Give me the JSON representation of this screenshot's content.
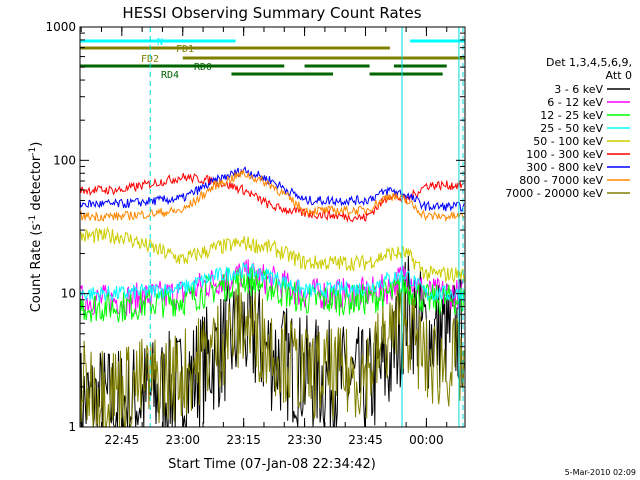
{
  "chart_data": {
    "type": "line",
    "title": "HESSI Observing Summary Count Rates",
    "ylabel": "Count Rate (s",
    "ylabel_sup1": "-1",
    "ylabel_mid": " detector",
    "ylabel_sup2": "-1",
    "ylabel_end": ")",
    "xlabel": "Start Time (07-Jan-08 22:34:42)",
    "y_scale": "log",
    "ylim": [
      1,
      1000
    ],
    "xlim": [
      "22:34:42",
      "00:09:30"
    ],
    "x_tick_labels": [
      "22:45",
      "23:00",
      "23:15",
      "23:30",
      "23:45",
      "00:00"
    ],
    "y_tick_labels": [
      "1",
      "10",
      "100",
      "1000"
    ],
    "legend_title": "Det 1,3,4,5,6,9,",
    "legend_subtitle": "Att 0",
    "legend_position": "right",
    "footer": "5-Mar-2010 02:09",
    "series": [
      {
        "name": "3 - 6 keV",
        "color": "#000000",
        "x": [
          "22:45",
          "23:00",
          "23:08",
          "23:15",
          "23:22",
          "23:30",
          "23:45",
          "23:51",
          "23:55",
          "00:00"
        ],
        "y": [
          1.5,
          2,
          3.5,
          5.5,
          3.5,
          2.5,
          2,
          3,
          8,
          5
        ]
      },
      {
        "name": "6 - 12 keV",
        "color": "#ff00ff",
        "x": [
          "22:45",
          "23:00",
          "23:08",
          "23:15",
          "23:22",
          "23:30",
          "23:45",
          "23:51",
          "23:55",
          "00:00"
        ],
        "y": [
          9,
          10,
          12.5,
          14,
          12.5,
          10,
          10,
          11,
          14,
          10
        ]
      },
      {
        "name": "12 - 25 keV",
        "color": "#00ff00",
        "x": [
          "22:45",
          "23:00",
          "23:08",
          "23:15",
          "23:22",
          "23:30",
          "23:45",
          "23:51",
          "23:55",
          "00:00"
        ],
        "y": [
          8,
          9,
          11,
          13,
          11,
          9,
          9,
          10,
          11,
          9
        ]
      },
      {
        "name": "25 - 50 keV",
        "color": "#00ffff",
        "x": [
          "22:45",
          "23:00",
          "23:08",
          "23:15",
          "23:22",
          "23:30",
          "23:45",
          "23:51",
          "23:55",
          "00:00"
        ],
        "y": [
          10,
          11,
          13.5,
          15,
          13.5,
          10.5,
          11,
          13,
          14,
          10
        ]
      },
      {
        "name": "50 - 100 keV",
        "color": "#cccc00",
        "x": [
          "22:45",
          "23:00",
          "23:08",
          "23:15",
          "23:22",
          "23:30",
          "23:45",
          "23:51",
          "23:55",
          "00:00"
        ],
        "y": [
          27,
          18,
          22,
          24,
          22,
          17,
          17,
          20,
          20,
          14
        ]
      },
      {
        "name": "100 - 300 keV",
        "color": "#ff0000",
        "x": [
          "22:45",
          "23:00",
          "23:08",
          "23:15",
          "23:22",
          "23:30",
          "23:45",
          "23:51",
          "23:55",
          "00:00"
        ],
        "y": [
          60,
          75,
          70,
          60,
          45,
          40,
          37,
          55,
          50,
          65
        ]
      },
      {
        "name": "300 - 800 keV",
        "color": "#0000ff",
        "x": [
          "22:45",
          "23:00",
          "23:08",
          "23:15",
          "23:22",
          "23:30",
          "23:45",
          "23:51",
          "23:55",
          "00:00"
        ],
        "y": [
          47,
          52,
          70,
          85,
          70,
          50,
          50,
          60,
          55,
          45
        ]
      },
      {
        "name": "800 - 7000 keV",
        "color": "#ff8800",
        "x": [
          "22:45",
          "23:00",
          "23:08",
          "23:15",
          "23:22",
          "23:30",
          "23:45",
          "23:51",
          "23:55",
          "00:00"
        ],
        "y": [
          38,
          42,
          65,
          80,
          65,
          42,
          42,
          55,
          50,
          38
        ]
      },
      {
        "name": "7000 - 20000 keV",
        "color": "#808000",
        "x": [
          "22:45",
          "23:00",
          "23:08",
          "23:15",
          "23:22",
          "23:30",
          "23:45",
          "23:51",
          "23:55",
          "00:00"
        ],
        "y": [
          2,
          2.5,
          4,
          6,
          4,
          2.5,
          2.5,
          5,
          6,
          3
        ]
      }
    ],
    "flag_bars": [
      {
        "label": "N",
        "color": "#00ffff",
        "segments": [
          [
            "22:34:42",
            "23:13"
          ],
          [
            "23:56",
            "00:09:30"
          ]
        ]
      },
      {
        "label": "FD1",
        "color": "#808000",
        "segments": [
          [
            "22:34:42",
            "23:51"
          ]
        ]
      },
      {
        "label": "FD2",
        "color": "#808000",
        "segments": [
          [
            "23:00",
            "00:09:30"
          ]
        ]
      },
      {
        "label": "RD0",
        "color": "#006400",
        "segments": [
          [
            "22:34:42",
            "23:25"
          ],
          [
            "23:30",
            "23:46"
          ],
          [
            "23:52",
            "00:05"
          ]
        ]
      },
      {
        "label": "RD4",
        "color": "#006400",
        "segments": [
          [
            "23:12",
            "23:37"
          ],
          [
            "23:46",
            "00:04"
          ]
        ]
      }
    ],
    "dashed_markers": [
      "22:52",
      "00:09"
    ],
    "solid_markers": [
      "23:54",
      "00:08"
    ]
  }
}
